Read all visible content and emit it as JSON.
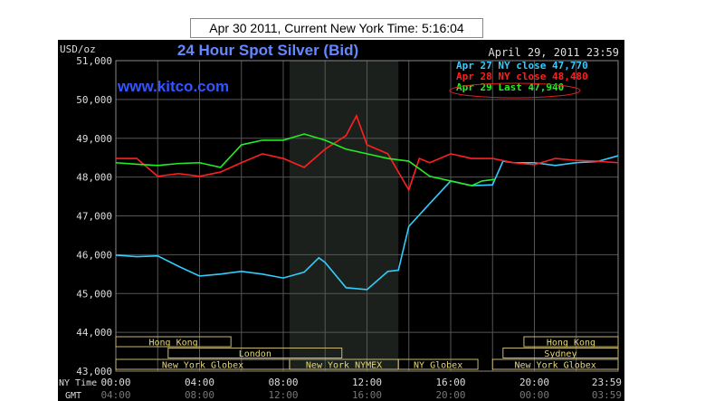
{
  "header": "Apr 30 2011, Current New York Time: 5:16:04",
  "chart_data": {
    "type": "line",
    "title": "24 Hour Spot Silver (Bid)",
    "watermark": "www.kitco.com",
    "ylabel": "USD/oz",
    "date_label": "April 29, 2011 23:59",
    "ylim": [
      43000,
      51000
    ],
    "yticks": [
      "51,000",
      "50,000",
      "49,000",
      "48,000",
      "47,000",
      "46,000",
      "45,000",
      "44,000",
      "43,000"
    ],
    "grid": true,
    "legend_position": "top-right",
    "x_row_labels": [
      "NY Time",
      "GMT"
    ],
    "xticks_ny": [
      "00:00",
      "04:00",
      "08:00",
      "12:00",
      "16:00",
      "20:00",
      "23:59"
    ],
    "xticks_gmt": [
      "04:00",
      "08:00",
      "12:00",
      "16:00",
      "20:00",
      "00:00",
      "03:59"
    ],
    "shaded_hours": [
      8.3,
      13.5
    ],
    "series": [
      {
        "name": "Apr 27 NY close 47,770",
        "color": "#33ccff",
        "x": [
          0,
          1,
          2,
          3,
          4,
          5,
          6,
          7,
          8,
          9,
          9.7,
          10,
          11,
          12,
          13,
          13.5,
          14,
          15,
          16,
          17,
          18,
          18.5,
          19,
          20,
          21,
          22,
          23,
          24
        ],
        "y": [
          45990,
          45950,
          45970,
          45700,
          45450,
          45500,
          45570,
          45500,
          45400,
          45550,
          45920,
          45800,
          45150,
          45100,
          45570,
          45600,
          46730,
          47320,
          47900,
          47780,
          47800,
          48410,
          48370,
          48370,
          48300,
          48370,
          48400,
          48550
        ]
      },
      {
        "name": "Apr 28 NY close 48,480",
        "color": "#ff2020",
        "x": [
          0,
          1,
          2,
          3,
          4,
          5,
          6,
          7,
          8,
          9,
          10,
          11,
          11.5,
          12,
          13,
          13.5,
          14,
          14.5,
          15,
          16,
          17,
          18,
          19,
          20,
          21,
          22,
          23,
          24
        ],
        "y": [
          48480,
          48480,
          48020,
          48090,
          48020,
          48130,
          48370,
          48600,
          48480,
          48250,
          48720,
          49070,
          49580,
          48830,
          48600,
          48130,
          47670,
          48480,
          48370,
          48600,
          48480,
          48480,
          48370,
          48320,
          48480,
          48430,
          48410,
          48370
        ]
      },
      {
        "name": "Apr 29 Last 47,940",
        "color": "#22ee22",
        "x": [
          0,
          1,
          2,
          3,
          4,
          5,
          6,
          7,
          8,
          9,
          10,
          11,
          12,
          13,
          14,
          15,
          16,
          17,
          17.5,
          18.1
        ],
        "y": [
          48370,
          48330,
          48300,
          48350,
          48370,
          48250,
          48830,
          48950,
          48950,
          49110,
          48950,
          48720,
          48600,
          48480,
          48410,
          48020,
          47900,
          47780,
          47900,
          47940
        ]
      }
    ],
    "sessions": [
      {
        "label": "Hong Kong",
        "row": 0,
        "start": 0,
        "end": 5.5
      },
      {
        "label": "Hong Kong",
        "row": 0,
        "start": 19.5,
        "end": 24
      },
      {
        "label": "London",
        "row": 1,
        "start": 2.5,
        "end": 10.8
      },
      {
        "label": "Sydney",
        "row": 1,
        "start": 18.5,
        "end": 24
      },
      {
        "label": "New York Globex",
        "row": 2,
        "start": 0,
        "end": 8.3
      },
      {
        "label": "New York NYMEX",
        "row": 2,
        "start": 8.3,
        "end": 13.5
      },
      {
        "label": "NY Globex",
        "row": 2,
        "start": 13.5,
        "end": 17.3
      },
      {
        "label": "New York Globex",
        "row": 2,
        "start": 18,
        "end": 24
      }
    ]
  }
}
